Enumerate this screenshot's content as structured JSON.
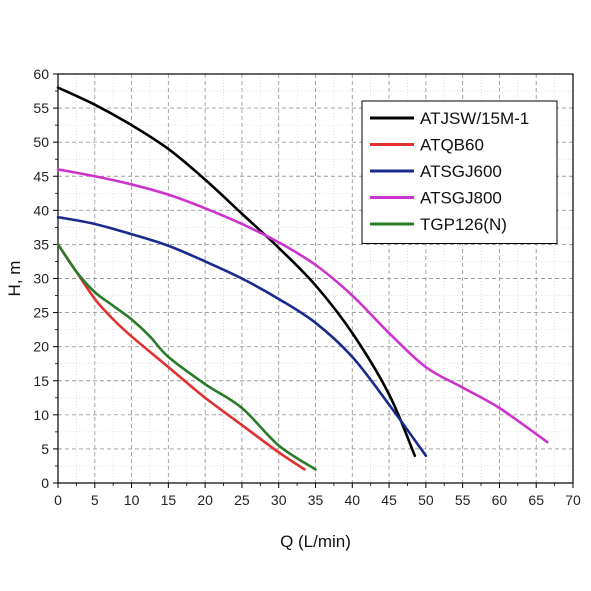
{
  "chart_data": {
    "type": "line",
    "title": "",
    "xlabel": "Q (L/min)",
    "ylabel": "H, m",
    "xlim": [
      0,
      70
    ],
    "ylim": [
      0,
      60
    ],
    "xticks": [
      0,
      5,
      10,
      15,
      20,
      25,
      30,
      35,
      40,
      45,
      50,
      55,
      60,
      65,
      70
    ],
    "yticks": [
      0,
      5,
      10,
      15,
      20,
      25,
      30,
      35,
      40,
      45,
      50,
      55,
      60
    ],
    "grid": true,
    "legend_position": "top-right",
    "series": [
      {
        "name": "ATJSW/15M-1",
        "color": "#000000",
        "x": [
          0,
          5,
          10,
          15,
          20,
          25,
          30,
          35,
          40,
          45,
          48.5
        ],
        "y": [
          58,
          55.5,
          52.5,
          49,
          44.5,
          39.5,
          34.5,
          29,
          22,
          13,
          4
        ]
      },
      {
        "name": "ATQB60",
        "color": "#e03030",
        "x": [
          0,
          2.5,
          5,
          7.5,
          10,
          15,
          20,
          25,
          30,
          33.5
        ],
        "y": [
          35,
          31,
          27,
          24,
          21.5,
          17,
          12.5,
          8.5,
          4.5,
          2
        ]
      },
      {
        "name": "ATSGJ600",
        "color": "#1a2a8c",
        "x": [
          0,
          5,
          10,
          15,
          20,
          25,
          30,
          35,
          40,
          45,
          50
        ],
        "y": [
          39,
          38,
          36.5,
          34.8,
          32.5,
          30,
          27,
          23.5,
          18.5,
          11.5,
          4
        ]
      },
      {
        "name": "ATSGJ800",
        "color": "#cc33cc",
        "x": [
          0,
          5,
          10,
          15,
          20,
          25,
          30,
          35,
          40,
          45,
          50,
          55,
          60,
          66.5
        ],
        "y": [
          46,
          45,
          43.8,
          42.3,
          40.3,
          38,
          35.3,
          32,
          27.5,
          22,
          17,
          14,
          11,
          6
        ]
      },
      {
        "name": "TGP126(N)",
        "color": "#2a7a2a",
        "x": [
          0,
          2.5,
          5,
          7.5,
          10,
          12.5,
          15,
          20,
          25,
          30,
          35
        ],
        "y": [
          35,
          31,
          28,
          26,
          24,
          21.5,
          18.5,
          14.5,
          11,
          5.5,
          2
        ]
      }
    ]
  }
}
